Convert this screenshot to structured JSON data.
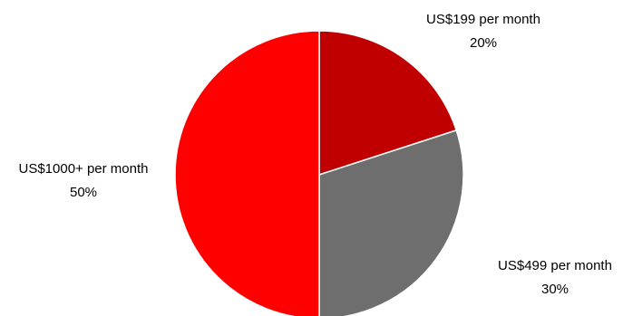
{
  "chart_data": {
    "type": "pie",
    "slices": [
      {
        "label": "US$199 per month",
        "value": 20,
        "value_label": "20%",
        "color": "#c00000"
      },
      {
        "label": "US$499 per month",
        "value": 30,
        "value_label": "30%",
        "color": "#6e6e6e"
      },
      {
        "label": "US$1000+ per month",
        "value": 50,
        "value_label": "50%",
        "color": "#ff0000"
      }
    ],
    "start_angle": "12 o'clock",
    "direction": "clockwise",
    "legend": "none"
  }
}
